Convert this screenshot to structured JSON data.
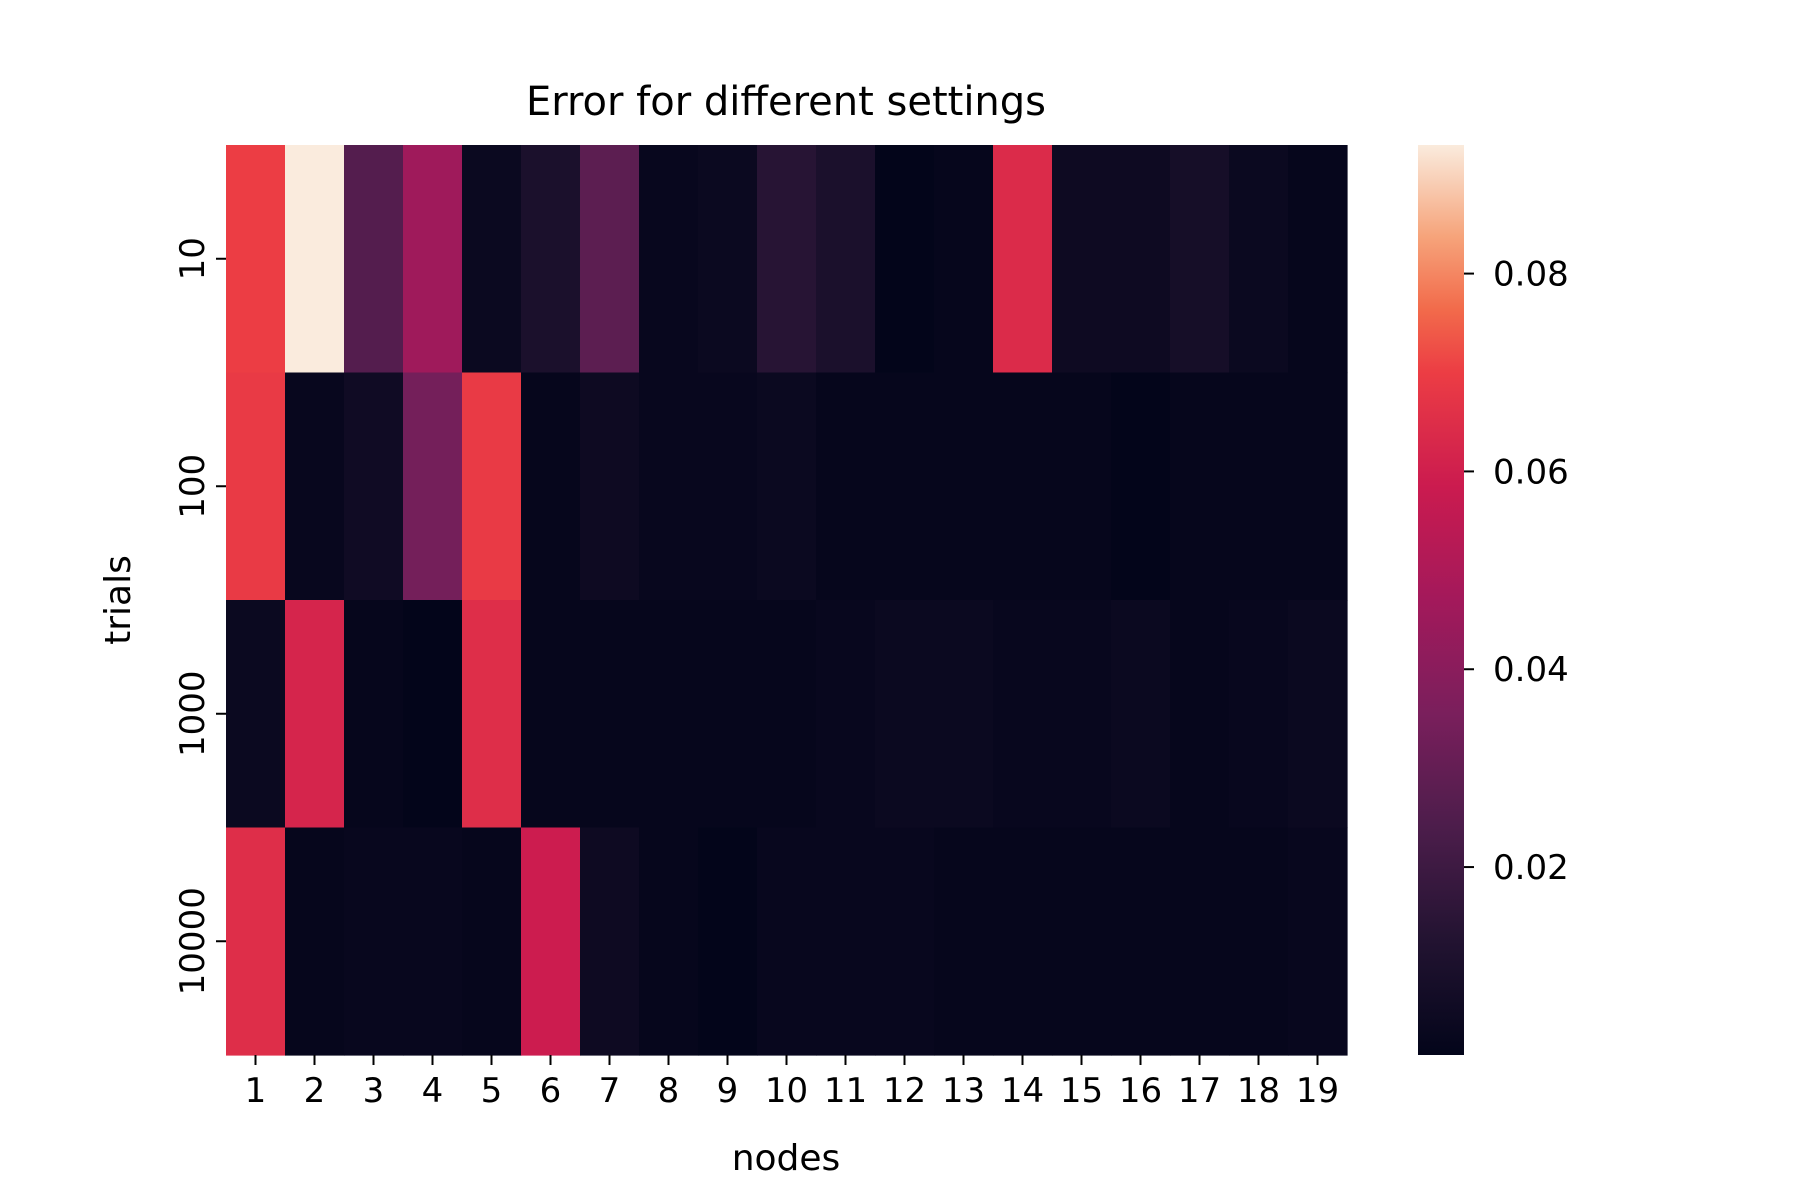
{
  "chart_data": {
    "type": "heatmap",
    "title": "Error for different settings",
    "xlabel": "nodes",
    "ylabel": "trials",
    "x_categories": [
      "1",
      "2",
      "3",
      "4",
      "5",
      "6",
      "7",
      "8",
      "9",
      "10",
      "11",
      "12",
      "13",
      "14",
      "15",
      "16",
      "17",
      "18",
      "19"
    ],
    "y_categories": [
      "10",
      "100",
      "1000",
      "10000"
    ],
    "values": [
      [
        0.07,
        0.093,
        0.026,
        0.046,
        0.004,
        0.01,
        0.028,
        0.003,
        0.004,
        0.014,
        0.01,
        0.001,
        0.002,
        0.064,
        0.005,
        0.005,
        0.008,
        0.004,
        0.002
      ],
      [
        0.069,
        0.003,
        0.006,
        0.034,
        0.069,
        0.002,
        0.005,
        0.003,
        0.003,
        0.004,
        0.002,
        0.002,
        0.002,
        0.002,
        0.002,
        0.001,
        0.002,
        0.002,
        0.002
      ],
      [
        0.004,
        0.062,
        0.002,
        0.001,
        0.065,
        0.002,
        0.002,
        0.002,
        0.002,
        0.002,
        0.003,
        0.004,
        0.004,
        0.003,
        0.003,
        0.004,
        0.002,
        0.003,
        0.004
      ],
      [
        0.065,
        0.002,
        0.003,
        0.003,
        0.002,
        0.059,
        0.005,
        0.002,
        0.001,
        0.003,
        0.003,
        0.003,
        0.002,
        0.002,
        0.002,
        0.002,
        0.002,
        0.002,
        0.003
      ]
    ],
    "colorbar": {
      "min": 0.001,
      "max": 0.093,
      "ticks": [
        0.02,
        0.04,
        0.06,
        0.08
      ],
      "tick_labels": [
        "0.02",
        "0.04",
        "0.06",
        "0.08"
      ]
    },
    "colormap": "rocket",
    "grid": false
  }
}
